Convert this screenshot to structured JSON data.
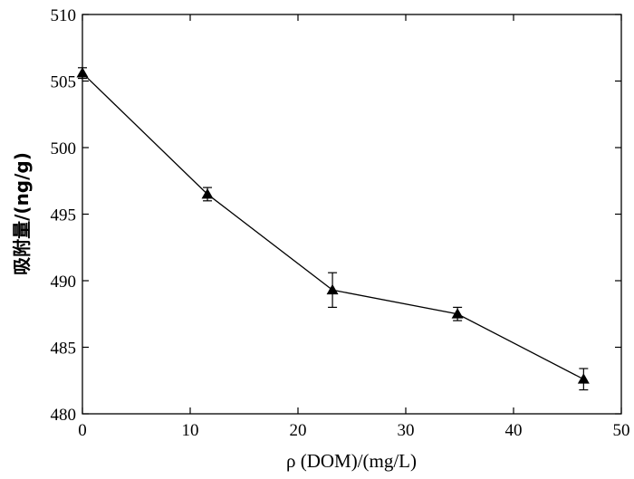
{
  "chart_data": {
    "type": "line",
    "title": "",
    "xlabel": "ρ (DOM)/(mg/L)",
    "ylabel": "吸附量/(ng/g)",
    "xlim": [
      0,
      50
    ],
    "ylim": [
      480,
      510
    ],
    "xticks": [
      0,
      10,
      20,
      30,
      40,
      50
    ],
    "yticks": [
      480,
      485,
      490,
      495,
      500,
      505,
      510
    ],
    "grid": false,
    "marker": "filled-triangle",
    "series": [
      {
        "x": [
          0,
          11.6,
          23.2,
          34.8,
          46.5
        ],
        "y": [
          505.6,
          496.5,
          489.3,
          487.5,
          482.6
        ],
        "error": [
          0.4,
          0.5,
          1.3,
          0.5,
          0.8
        ]
      }
    ]
  }
}
